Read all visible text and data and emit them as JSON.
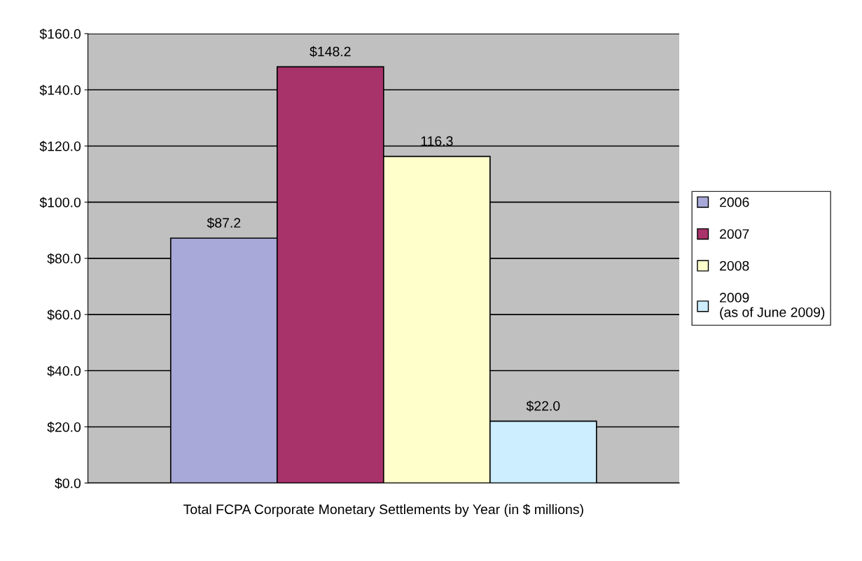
{
  "chart_data": {
    "type": "bar",
    "xlabel": "Total FCPA Corporate Monetary Settlements by Year (in $ millions)",
    "categories": [
      null
    ],
    "series": [
      {
        "name": "2006",
        "color": "#a9a9d9",
        "values": [
          87.2
        ],
        "value_labels": [
          "$87.2"
        ]
      },
      {
        "name": "2007",
        "color": "#a8336b",
        "values": [
          148.2
        ],
        "value_labels": [
          "$148.2"
        ]
      },
      {
        "name": "2008",
        "color": "#ffffcc",
        "values": [
          116.3
        ],
        "value_labels": [
          "116.3"
        ]
      },
      {
        "name": "2009\n(as of June 2009)",
        "color": "#cceeff",
        "values": [
          22.0
        ],
        "value_labels": [
          "$22.0"
        ]
      }
    ],
    "ylim": [
      0,
      160
    ],
    "yticks": [
      {
        "value": 0,
        "label": "$0.0"
      },
      {
        "value": 20,
        "label": "$20.0"
      },
      {
        "value": 40,
        "label": "$40.0"
      },
      {
        "value": 60,
        "label": "$60.0"
      },
      {
        "value": 80,
        "label": "$80.0"
      },
      {
        "value": 100,
        "label": "$100.0"
      },
      {
        "value": 120,
        "label": "$120.0"
      },
      {
        "value": 140,
        "label": "$140.0"
      },
      {
        "value": 160,
        "label": "$160.0"
      }
    ],
    "grid": "y",
    "legend": "right"
  }
}
